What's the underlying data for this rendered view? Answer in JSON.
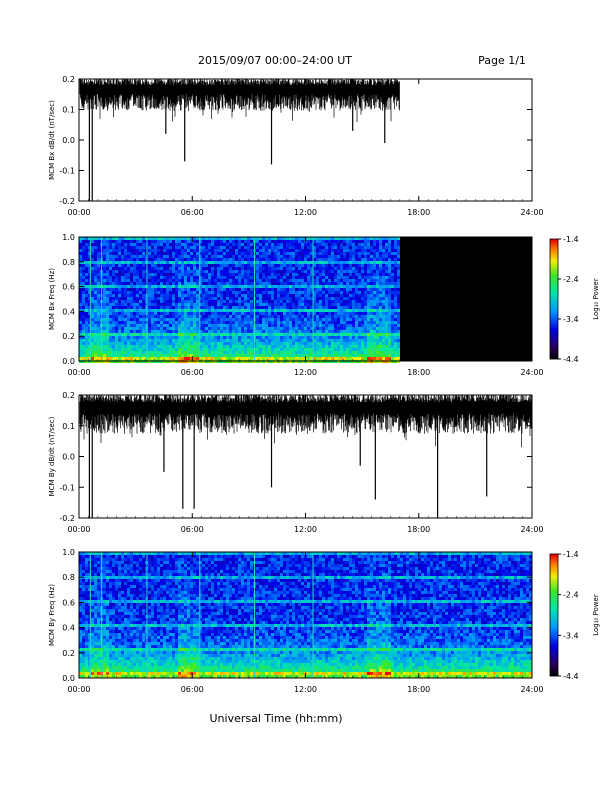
{
  "header": {
    "title": "2015/09/07  00:00–24:00 UT",
    "page": "Page 1/1"
  },
  "xlabel": "Universal Time (hh:mm)",
  "colorbar": {
    "label": "Log₁₀ Power",
    "ticks": [
      "-1.4",
      "-2.4",
      "-3.4",
      "-4.4"
    ],
    "range": [
      -4.4,
      -1.4
    ]
  },
  "chart_data": [
    {
      "type": "line",
      "ylabel": "MCM Bx dB/dt (nT/sec)",
      "xlim": [
        0,
        24
      ],
      "ylim": [
        -0.2,
        0.2
      ],
      "xticks": [
        "00:00",
        "06:00",
        "12:00",
        "18:00",
        "24:00"
      ],
      "yticks": [
        "0.2",
        "0.1",
        "0.0",
        "-0.1",
        "-0.2"
      ],
      "data_end_hour": 17.0,
      "baseline_range": [
        0.1,
        0.2
      ],
      "spikes": [
        {
          "x": 0.55,
          "y": -0.2
        },
        {
          "x": 0.7,
          "y": -0.2
        },
        {
          "x": 4.6,
          "y": 0.02
        },
        {
          "x": 5.6,
          "y": -0.07
        },
        {
          "x": 10.2,
          "y": -0.08
        },
        {
          "x": 14.5,
          "y": 0.03
        },
        {
          "x": 16.2,
          "y": -0.01
        }
      ]
    },
    {
      "type": "heatmap",
      "ylabel": "MCM Bx Freq (Hz)",
      "xlim": [
        0,
        24
      ],
      "ylim": [
        0.0,
        1.0
      ],
      "xticks": [
        "00:00",
        "06:00",
        "12:00",
        "18:00",
        "24:00"
      ],
      "yticks": [
        "1.0",
        "0.8",
        "0.6",
        "0.4",
        "0.2",
        "0.0"
      ],
      "data_end_hour": 17.0
    },
    {
      "type": "line",
      "ylabel": "MCM By dB/dt (nT/sec)",
      "xlim": [
        0,
        24
      ],
      "ylim": [
        -0.2,
        0.2
      ],
      "xticks": [
        "00:00",
        "06:00",
        "12:00",
        "18:00",
        "24:00"
      ],
      "yticks": [
        "0.2",
        "0.1",
        "0.0",
        "-0.1",
        "-0.2"
      ],
      "data_end_hour": 24.0,
      "baseline_range": [
        0.08,
        0.2
      ],
      "spikes": [
        {
          "x": 0.55,
          "y": -0.2
        },
        {
          "x": 0.7,
          "y": -0.2
        },
        {
          "x": 4.5,
          "y": -0.05
        },
        {
          "x": 5.5,
          "y": -0.17
        },
        {
          "x": 6.1,
          "y": -0.17
        },
        {
          "x": 10.2,
          "y": -0.1
        },
        {
          "x": 14.9,
          "y": -0.03
        },
        {
          "x": 15.7,
          "y": -0.14
        },
        {
          "x": 19.0,
          "y": -0.2
        },
        {
          "x": 21.6,
          "y": -0.13
        }
      ]
    },
    {
      "type": "heatmap",
      "ylabel": "MCM By Freq (Hz)",
      "xlim": [
        0,
        24
      ],
      "ylim": [
        0.0,
        1.0
      ],
      "xticks": [
        "00:00",
        "06:00",
        "12:00",
        "18:00",
        "24:00"
      ],
      "yticks": [
        "1.0",
        "0.8",
        "0.6",
        "0.4",
        "0.2",
        "0.0"
      ],
      "data_end_hour": 24.0
    }
  ]
}
